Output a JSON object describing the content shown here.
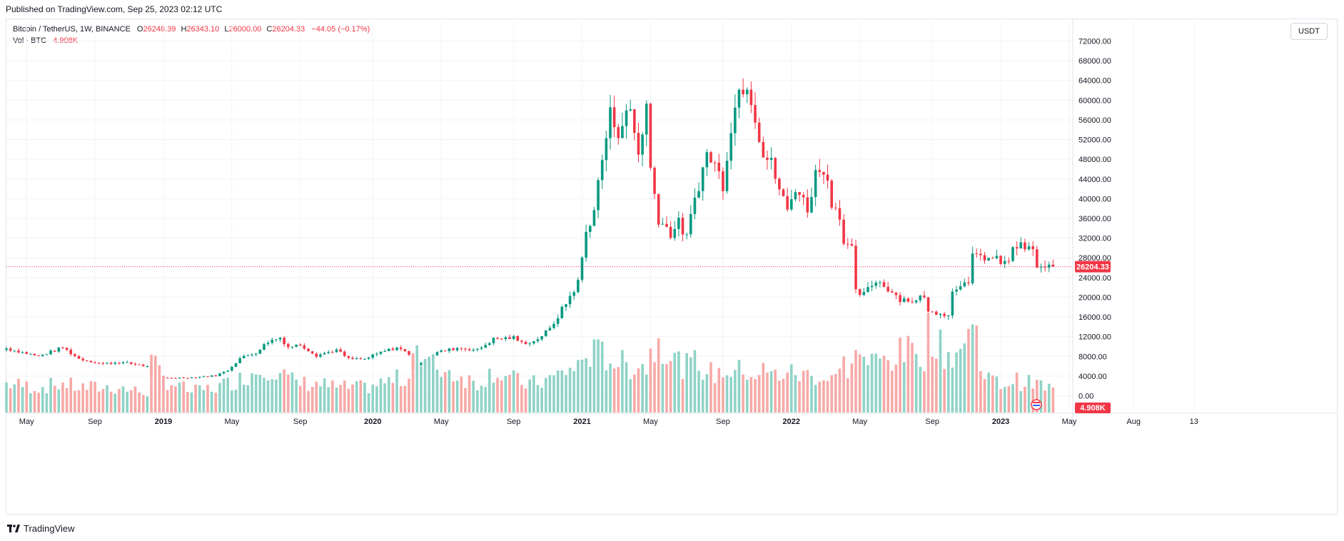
{
  "header": {
    "published": "Published on TradingView.com, Sep 25, 2023 02:12 UTC"
  },
  "legend": {
    "symbol": "Bitcoin / TetherUS, 1W, BINANCE",
    "open_label": "O",
    "open": "26248.39",
    "high_label": "H",
    "high": "26343.10",
    "low_label": "L",
    "low": "26000.00",
    "close_label": "C",
    "close": "26204.33",
    "change": "−44.05 (−0.17%)",
    "vol_label": "Vol · BTC",
    "vol": "4.908K"
  },
  "currency": "USDT",
  "footer": {
    "brand": "TradingView"
  },
  "colors": {
    "up": "#089981",
    "down": "#f23645",
    "grid": "#f0f3fa",
    "up_vol": "#8fd3c6",
    "down_vol": "#f7a9a7"
  },
  "chart_data": {
    "type": "candlestick",
    "interval": "1W",
    "price_axis": {
      "ticks": [
        0,
        4000,
        8000,
        12000,
        16000,
        20000,
        24000,
        28000,
        32000,
        36000,
        40000,
        44000,
        48000,
        52000,
        56000,
        60000,
        64000,
        68000,
        72000
      ],
      "tick_labels": [
        "0.00",
        "4000.00",
        "8000.00",
        "12000.00",
        "16000.00",
        "20000.00",
        "24000.00",
        "28000.00",
        "32000.00",
        "36000.00",
        "40000.00",
        "44000.00",
        "48000.00",
        "52000.00",
        "56000.00",
        "60000.00",
        "64000.00",
        "68000.00",
        "72000.00"
      ],
      "last_price": 26204.33,
      "last_price_label": "26204.33",
      "last_volume_label": "4.908K"
    },
    "time_axis": {
      "labels": [
        "May",
        "Sep",
        "2019",
        "May",
        "Sep",
        "2020",
        "May",
        "Sep",
        "2021",
        "May",
        "Sep",
        "2022",
        "May",
        "Sep",
        "2023",
        "May",
        "Aug",
        "13"
      ],
      "label_weeks": [
        5,
        22,
        39,
        56,
        73,
        91,
        108,
        126,
        143,
        160,
        178,
        195,
        212,
        230,
        247,
        264,
        280,
        295
      ]
    },
    "anchors": [
      [
        0,
        9600,
        0.35
      ],
      [
        8,
        8000,
        0.3
      ],
      [
        14,
        9800,
        0.35
      ],
      [
        18,
        7500,
        0.3
      ],
      [
        24,
        6500,
        0.3
      ],
      [
        28,
        6800,
        0.3
      ],
      [
        33,
        6300,
        0.25
      ],
      [
        35,
        5900,
        0.25
      ],
      [
        36,
        4300,
        0.6
      ],
      [
        39,
        3600,
        0.4
      ],
      [
        46,
        3700,
        0.25
      ],
      [
        52,
        4100,
        0.3
      ],
      [
        55,
        5200,
        0.35
      ],
      [
        58,
        7600,
        0.4
      ],
      [
        62,
        8800,
        0.5
      ],
      [
        65,
        11000,
        0.55
      ],
      [
        68,
        11800,
        0.5
      ],
      [
        70,
        9900,
        0.4
      ],
      [
        73,
        10400,
        0.35
      ],
      [
        77,
        8200,
        0.35
      ],
      [
        82,
        9300,
        0.3
      ],
      [
        85,
        7500,
        0.3
      ],
      [
        89,
        7400,
        0.3
      ],
      [
        93,
        8800,
        0.35
      ],
      [
        97,
        9800,
        0.4
      ],
      [
        100,
        8500,
        0.4
      ],
      [
        101,
        5200,
        1.0
      ],
      [
        103,
        6900,
        0.6
      ],
      [
        107,
        8800,
        0.55
      ],
      [
        112,
        9700,
        0.45
      ],
      [
        117,
        9300,
        0.35
      ],
      [
        121,
        11500,
        0.5
      ],
      [
        126,
        11800,
        0.4
      ],
      [
        128,
        10700,
        0.35
      ],
      [
        131,
        11000,
        0.35
      ],
      [
        135,
        13500,
        0.4
      ],
      [
        139,
        18800,
        0.5
      ],
      [
        142,
        23000,
        0.55
      ],
      [
        144,
        33000,
        0.7
      ],
      [
        146,
        38000,
        0.7
      ],
      [
        148,
        48000,
        0.7
      ],
      [
        150,
        57000,
        0.65
      ],
      [
        152,
        54000,
        0.6
      ],
      [
        155,
        58000,
        0.55
      ],
      [
        157,
        49000,
        0.6
      ],
      [
        159,
        59000,
        0.55
      ],
      [
        160,
        46000,
        0.7
      ],
      [
        162,
        36000,
        0.9
      ],
      [
        165,
        33000,
        0.7
      ],
      [
        167,
        35000,
        0.6
      ],
      [
        169,
        32000,
        0.55
      ],
      [
        171,
        40000,
        0.6
      ],
      [
        174,
        49000,
        0.5
      ],
      [
        176,
        47000,
        0.45
      ],
      [
        178,
        43000,
        0.5
      ],
      [
        180,
        55000,
        0.5
      ],
      [
        182,
        62000,
        0.5
      ],
      [
        184,
        64000,
        0.5
      ],
      [
        186,
        57000,
        0.45
      ],
      [
        188,
        49000,
        0.5
      ],
      [
        190,
        47000,
        0.45
      ],
      [
        192,
        42000,
        0.45
      ],
      [
        194,
        37500,
        0.5
      ],
      [
        196,
        42500,
        0.45
      ],
      [
        199,
        38000,
        0.45
      ],
      [
        201,
        45000,
        0.45
      ],
      [
        203,
        46500,
        0.4
      ],
      [
        205,
        39500,
        0.45
      ],
      [
        207,
        37000,
        0.45
      ],
      [
        208,
        31000,
        0.6
      ],
      [
        210,
        29500,
        0.5
      ],
      [
        211,
        21000,
        0.9
      ],
      [
        213,
        20500,
        0.6
      ],
      [
        216,
        23500,
        0.6
      ],
      [
        219,
        21800,
        0.65
      ],
      [
        222,
        19700,
        0.7
      ],
      [
        226,
        19200,
        0.75
      ],
      [
        228,
        20500,
        0.7
      ],
      [
        229,
        16800,
        1.1
      ],
      [
        231,
        17000,
        0.8
      ],
      [
        234,
        16600,
        0.7
      ],
      [
        235,
        21000,
        0.7
      ],
      [
        238,
        23800,
        0.8
      ],
      [
        239,
        22500,
        0.9
      ],
      [
        240,
        28000,
        1.2
      ],
      [
        243,
        28200,
        0.45
      ],
      [
        246,
        27500,
        0.35
      ],
      [
        249,
        26800,
        0.35
      ],
      [
        250,
        30400,
        0.4
      ],
      [
        253,
        30100,
        0.35
      ],
      [
        255,
        29200,
        0.35
      ],
      [
        256,
        26300,
        0.35
      ],
      [
        258,
        25900,
        0.3
      ],
      [
        260,
        26204,
        0.3
      ]
    ],
    "volume_axis_note": "volume pane below price pane"
  }
}
